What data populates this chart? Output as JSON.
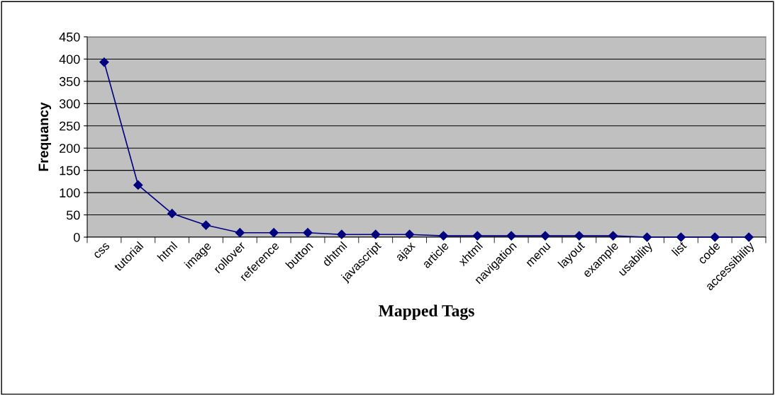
{
  "chart_data": {
    "type": "line",
    "xlabel": "Mapped Tags",
    "ylabel": "Frequancy",
    "categories": [
      "css",
      "tutorial",
      "html",
      "image",
      "rollover",
      "reference",
      "button",
      "dhtml",
      "javascript",
      "ajax",
      "article",
      "xhtml",
      "navigation",
      "menu",
      "layout",
      "example",
      "usability",
      "list",
      "code",
      "accessibility"
    ],
    "series": [
      {
        "color": "#000080",
        "values": [
          393,
          117,
          53,
          27,
          10,
          10,
          10,
          6,
          6,
          6,
          3,
          3,
          3,
          3,
          3,
          3,
          0,
          0,
          0,
          0
        ]
      }
    ],
    "ylim": [
      0,
      450
    ],
    "yticks": [
      0,
      50,
      100,
      150,
      200,
      250,
      300,
      350,
      400,
      450
    ],
    "grid": "y",
    "marker": "diamond",
    "line_style": "solid",
    "legend": false
  }
}
